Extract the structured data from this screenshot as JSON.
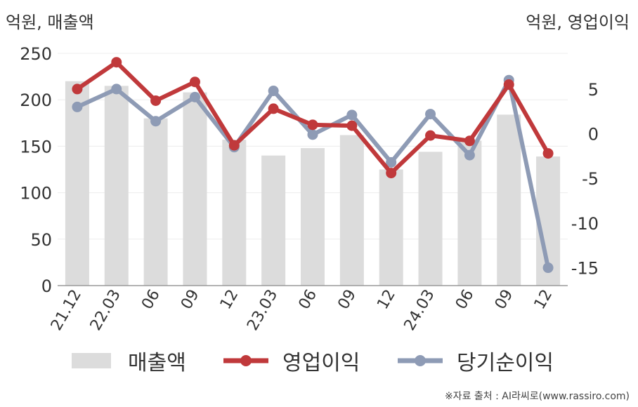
{
  "chart_data": {
    "type": "bar+line",
    "left_axis_label": "억원, 매출액",
    "right_axis_label": "억원, 영업이익",
    "categories": [
      "21.12",
      "22.03",
      "06",
      "09",
      "12",
      "23.03",
      "06",
      "09",
      "12",
      "24.03",
      "06",
      "09",
      "12"
    ],
    "left_ylim": [
      0,
      250
    ],
    "left_ticks": [
      "0",
      "50",
      "100",
      "150",
      "200",
      "250"
    ],
    "right_ylim": [
      -17,
      9
    ],
    "right_ticks": [
      "5",
      "0",
      "-5",
      "-10",
      "-15"
    ],
    "series": [
      {
        "name": "매출액",
        "kind": "bar",
        "axis": "left",
        "color": "#dcdcdc",
        "values": [
          220,
          215,
          180,
          208,
          157,
          140,
          148,
          162,
          125,
          144,
          156,
          184,
          139
        ]
      },
      {
        "name": "영업이익",
        "kind": "line",
        "axis": "right",
        "color": "#c0393b",
        "values": [
          5.0,
          8.0,
          3.7,
          5.8,
          -1.3,
          2.8,
          1.0,
          0.9,
          -4.4,
          -0.2,
          -0.8,
          5.5,
          -2.2
        ]
      },
      {
        "name": "당기순이익",
        "kind": "line",
        "axis": "right",
        "color": "#8e9bb5",
        "values": [
          3.0,
          5.0,
          1.4,
          4.1,
          -1.5,
          4.8,
          -0.1,
          2.1,
          -3.2,
          2.2,
          -2.4,
          6.0,
          -15.0
        ]
      }
    ],
    "grid": true,
    "legend_position": "bottom"
  },
  "source": "※자료 출처 : AI라씨로(www.rassiro.com)"
}
